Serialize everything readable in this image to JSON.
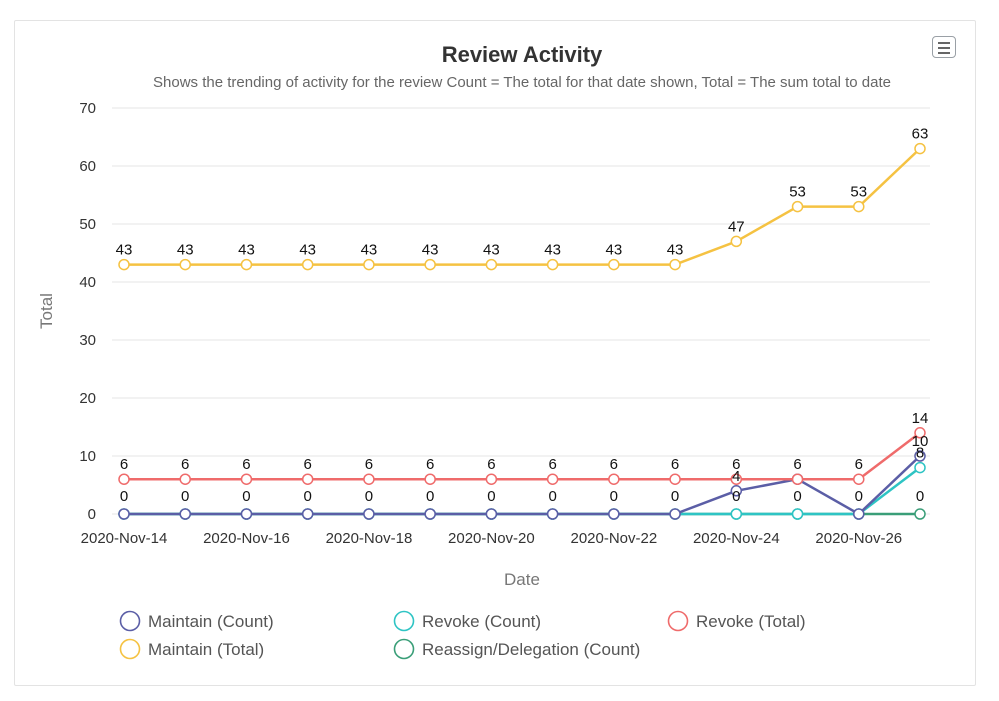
{
  "chart_data": {
    "type": "line",
    "title": "Review Activity",
    "subtitle": "Shows the trending of activity for the review Count = The total for that date shown, Total = The sum total to date",
    "xlabel": "Date",
    "ylabel": "Total",
    "ylim": [
      0,
      70
    ],
    "yticks": [
      0,
      10,
      20,
      30,
      40,
      50,
      60,
      70
    ],
    "x": [
      "2020-Nov-14",
      "2020-Nov-15",
      "2020-Nov-16",
      "2020-Nov-17",
      "2020-Nov-18",
      "2020-Nov-19",
      "2020-Nov-20",
      "2020-Nov-21",
      "2020-Nov-22",
      "2020-Nov-23",
      "2020-Nov-24",
      "2020-Nov-25",
      "2020-Nov-26",
      "2020-Nov-27"
    ],
    "xtick_labels": [
      "2020-Nov-14",
      "2020-Nov-16",
      "2020-Nov-18",
      "2020-Nov-20",
      "2020-Nov-22",
      "2020-Nov-24",
      "2020-Nov-26"
    ],
    "grid": true,
    "legend_placement": "bottom",
    "series": [
      {
        "name": "Maintain (Count)",
        "color": "#5b5ea6",
        "values": [
          0,
          0,
          0,
          0,
          0,
          0,
          0,
          0,
          0,
          0,
          4,
          6,
          0,
          10
        ],
        "labels": [
          "",
          "",
          "",
          "",
          "",
          "",
          "",
          "",
          "",
          "",
          "4",
          "",
          "",
          "10"
        ]
      },
      {
        "name": "Maintain (Total)",
        "color": "#f5c242",
        "values": [
          43,
          43,
          43,
          43,
          43,
          43,
          43,
          43,
          43,
          43,
          47,
          53,
          53,
          63
        ],
        "labels": [
          "43",
          "43",
          "43",
          "43",
          "43",
          "43",
          "43",
          "43",
          "43",
          "43",
          "47",
          "53",
          "53",
          "63"
        ]
      },
      {
        "name": "Revoke (Count)",
        "color": "#2ec4c4",
        "values": [
          0,
          0,
          0,
          0,
          0,
          0,
          0,
          0,
          0,
          0,
          0,
          0,
          0,
          8
        ],
        "labels": [
          "",
          "",
          "",
          "",
          "",
          "",
          "",
          "",
          "",
          "",
          "",
          "",
          "",
          "8"
        ]
      },
      {
        "name": "Reassign/Delegation (Count)",
        "color": "#3a9e78",
        "values": [
          0,
          0,
          0,
          0,
          0,
          0,
          0,
          0,
          0,
          0,
          0,
          0,
          0,
          0
        ],
        "labels": [
          "0",
          "0",
          "0",
          "0",
          "0",
          "0",
          "0",
          "0",
          "0",
          "0",
          "0",
          "0",
          "0",
          "0"
        ]
      },
      {
        "name": "Revoke (Total)",
        "color": "#ef6b6b",
        "values": [
          6,
          6,
          6,
          6,
          6,
          6,
          6,
          6,
          6,
          6,
          6,
          6,
          6,
          14
        ],
        "labels": [
          "6",
          "6",
          "6",
          "6",
          "6",
          "6",
          "6",
          "6",
          "6",
          "6",
          "6",
          "6",
          "6",
          "14"
        ]
      }
    ],
    "legend": [
      {
        "name": "Maintain (Count)",
        "color": "#5b5ea6"
      },
      {
        "name": "Revoke (Count)",
        "color": "#2ec4c4"
      },
      {
        "name": "Revoke (Total)",
        "color": "#ef6b6b"
      },
      {
        "name": "Maintain (Total)",
        "color": "#f5c242"
      },
      {
        "name": "Reassign/Delegation (Count)",
        "color": "#3a9e78"
      }
    ]
  },
  "menu": {
    "icon": "hamburger-menu-icon"
  }
}
